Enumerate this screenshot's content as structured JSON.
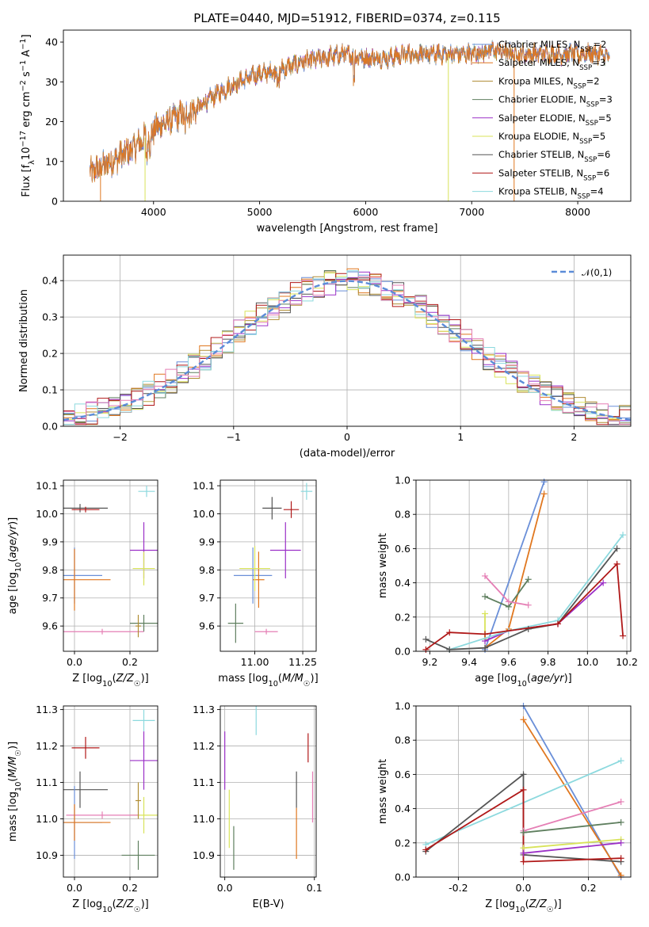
{
  "figure_title": "PLATE=0440, MJD=51912, FIBERID=0374, z=0.115",
  "colors": {
    "Chabrier MILES": "#6a8fd8",
    "Salpeter MILES": "#e0771f",
    "Kroupa MILES": "#b08d34",
    "Chabrier ELODIE": "#5f7f5f",
    "Salpeter ELODIE": "#9b30c7",
    "Kroupa ELODIE": "#d8e35a",
    "Chabrier STELIB": "#555555",
    "Salpeter STELIB": "#b01818",
    "Kroupa STELIB": "#8cd9de",
    "pink": "#e57fb5",
    "normal": "#5b8cd8"
  },
  "chart_data": [
    {
      "id": "spectrum",
      "type": "line",
      "title": "",
      "xlabel": "wavelength [Angstrom, rest frame]",
      "ylabel": "Flux [f_λ10^-17 erg cm^-2 s^-1 A^-1]",
      "xlim": [
        3150,
        8500
      ],
      "ylim": [
        0,
        43
      ],
      "xticks": [
        4000,
        5000,
        6000,
        7000,
        8000
      ],
      "yticks": [
        0,
        10,
        20,
        30,
        40
      ],
      "grid": false,
      "legend_position": "right",
      "x_range_data": [
        3400,
        8300
      ],
      "continuum_x": [
        3400,
        3600,
        3800,
        4000,
        4200,
        4400,
        4600,
        4800,
        5000,
        5200,
        5400,
        5600,
        5800,
        6000,
        6200,
        6400,
        6600,
        6800,
        7000,
        7200,
        7400,
        7600,
        7800,
        8000,
        8200,
        8300
      ],
      "continuum_y": [
        7,
        10,
        13,
        18,
        21,
        23,
        27,
        30,
        32,
        33,
        35,
        36,
        37,
        36,
        36,
        37,
        37,
        37,
        37,
        38,
        37,
        37,
        37,
        37,
        37,
        36
      ],
      "spikes": [
        {
          "x": 3500,
          "y": 0,
          "series": "Salpeter MILES"
        },
        {
          "x": 3920,
          "y": 0,
          "series": "Kroupa ELODIE"
        },
        {
          "x": 6780,
          "y": 0,
          "series": "Kroupa ELODIE"
        },
        {
          "x": 7400,
          "y": 0,
          "series": "Salpeter MILES"
        }
      ],
      "series": [
        {
          "name": "Chabrier MILES",
          "label_main": "Chabrier MILES, N",
          "label_sub": "SSP",
          "label_end": "=2"
        },
        {
          "name": "Salpeter MILES",
          "label_main": "Salpeter MILES, N",
          "label_sub": "SSP",
          "label_end": "=3"
        },
        {
          "name": "Kroupa MILES",
          "label_main": "Kroupa MILES, N",
          "label_sub": "SSP",
          "label_end": "=2"
        },
        {
          "name": "Chabrier ELODIE",
          "label_main": "Chabrier ELODIE, N",
          "label_sub": "SSP",
          "label_end": "=3"
        },
        {
          "name": "Salpeter ELODIE",
          "label_main": "Salpeter ELODIE, N",
          "label_sub": "SSP",
          "label_end": "=5"
        },
        {
          "name": "Kroupa ELODIE",
          "label_main": "Kroupa ELODIE, N",
          "label_sub": "SSP",
          "label_end": "=5"
        },
        {
          "name": "Chabrier STELIB",
          "label_main": "Chabrier STELIB, N",
          "label_sub": "SSP",
          "label_end": "=6"
        },
        {
          "name": "Salpeter STELIB",
          "label_main": "Salpeter STELIB, N",
          "label_sub": "SSP",
          "label_end": "=6"
        },
        {
          "name": "Kroupa STELIB",
          "label_main": "Kroupa STELIB, N",
          "label_sub": "SSP",
          "label_end": "=4"
        }
      ]
    },
    {
      "id": "residuals",
      "type": "line",
      "xlabel": "(data-model)/error",
      "ylabel": "Normed distribution",
      "xlim": [
        -2.5,
        2.5
      ],
      "ylim": [
        0,
        0.47
      ],
      "xticks": [
        -2,
        -1,
        0,
        1,
        2
      ],
      "yticks": [
        0.0,
        0.1,
        0.2,
        0.3,
        0.4
      ],
      "grid": true,
      "legend_position": "top-right",
      "legend_label": "𝒩(0,1)",
      "bins": 50,
      "hist_colors": [
        "#6a8fd8",
        "#e0771f",
        "#b08d34",
        "#5f7f5f",
        "#9b30c7",
        "#d8e35a",
        "#555555",
        "#b01818",
        "#8cd9de",
        "#e57fb5"
      ]
    },
    {
      "id": "age-vs-Z",
      "type": "scatter",
      "xlabel": "Z [log10(Z/Z☉)]",
      "ylabel": "age  [log10(age/yr)]",
      "xlim": [
        -0.04,
        0.3
      ],
      "ylim": [
        9.51,
        10.12
      ],
      "xticks": [
        0.0,
        0.2
      ],
      "yticks": [
        9.6,
        9.7,
        9.8,
        9.9,
        10.0,
        10.1
      ],
      "grid": true,
      "points": [
        {
          "x": 0.02,
          "y": 10.02,
          "xerr": 0.1,
          "yerr": 0.015,
          "series": "Chabrier STELIB"
        },
        {
          "x": 0.04,
          "y": 10.015,
          "xerr": 0.05,
          "yerr": 0.01,
          "series": "Salpeter STELIB"
        },
        {
          "x": 0.26,
          "y": 10.08,
          "xerr": 0.03,
          "yerr": 0.02,
          "series": "Kroupa STELIB"
        },
        {
          "x": 0.0,
          "y": 9.78,
          "xerr": 0.1,
          "yerr": 0.1,
          "series": "Chabrier MILES"
        },
        {
          "x": 0.0,
          "y": 9.765,
          "xerr": 0.13,
          "yerr": 0.11,
          "series": "Salpeter MILES"
        },
        {
          "x": 0.25,
          "y": 9.87,
          "xerr": 0.05,
          "yerr": 0.1,
          "series": "Salpeter ELODIE"
        },
        {
          "x": 0.25,
          "y": 9.805,
          "xerr": 0.04,
          "yerr": 0.06,
          "series": "Kroupa ELODIE"
        },
        {
          "x": 0.25,
          "y": 9.61,
          "xerr": 0.05,
          "yerr": 0.03,
          "series": "Chabrier ELODIE"
        },
        {
          "x": 0.1,
          "y": 9.58,
          "xerr": 0.15,
          "yerr": 0.01,
          "series": "pink"
        },
        {
          "x": 0.23,
          "y": 9.6,
          "xerr": 0.01,
          "yerr": 0.04,
          "series": "Kroupa MILES"
        }
      ]
    },
    {
      "id": "age-vs-mass",
      "type": "scatter",
      "xlabel": "mass [log10(M/M☉)]",
      "ylabel": "",
      "xlim": [
        10.82,
        11.32
      ],
      "ylim": [
        9.51,
        10.12
      ],
      "xticks": [
        11.0,
        11.25
      ],
      "yticks": [
        9.6,
        9.7,
        9.8,
        9.9,
        10.0,
        10.1
      ],
      "grid": true,
      "points": [
        {
          "x": 11.09,
          "y": 10.02,
          "xerr": 0.05,
          "yerr": 0.04,
          "series": "Chabrier STELIB"
        },
        {
          "x": 11.19,
          "y": 10.015,
          "xerr": 0.04,
          "yerr": 0.03,
          "series": "Salpeter STELIB"
        },
        {
          "x": 11.27,
          "y": 10.08,
          "xerr": 0.03,
          "yerr": 0.03,
          "series": "Kroupa STELIB"
        },
        {
          "x": 10.99,
          "y": 9.78,
          "xerr": 0.1,
          "yerr": 0.1,
          "series": "Chabrier MILES"
        },
        {
          "x": 11.02,
          "y": 9.765,
          "xerr": 0.03,
          "yerr": 0.1,
          "series": "Salpeter MILES"
        },
        {
          "x": 11.16,
          "y": 9.87,
          "xerr": 0.08,
          "yerr": 0.1,
          "series": "Salpeter ELODIE"
        },
        {
          "x": 11.0,
          "y": 9.805,
          "xerr": 0.08,
          "yerr": 0.08,
          "series": "Kroupa ELODIE"
        },
        {
          "x": 10.9,
          "y": 9.61,
          "xerr": 0.04,
          "yerr": 0.07,
          "series": "Chabrier ELODIE"
        },
        {
          "x": 11.06,
          "y": 9.58,
          "xerr": 0.06,
          "yerr": 0.01,
          "series": "pink"
        }
      ]
    },
    {
      "id": "weight-vs-age",
      "type": "line",
      "xlabel": "age  [log10(age/yr)]",
      "ylabel": "mass weight",
      "xlim": [
        9.13,
        10.22
      ],
      "ylim": [
        0.0,
        1.0
      ],
      "xticks": [
        9.2,
        9.4,
        9.6,
        9.8,
        10.0,
        10.2
      ],
      "yticks": [
        0.0,
        0.2,
        0.4,
        0.6,
        0.8,
        1.0
      ],
      "grid": true,
      "series": [
        {
          "name": "Chabrier MILES",
          "x": [
            9.48,
            9.78
          ],
          "y": [
            0.01,
            0.99
          ]
        },
        {
          "name": "Salpeter MILES",
          "x": [
            9.48,
            9.6,
            9.78
          ],
          "y": [
            0.02,
            0.13,
            0.92
          ]
        },
        {
          "name": "Chabrier ELODIE",
          "x": [
            9.48,
            9.6,
            9.7
          ],
          "y": [
            0.32,
            0.26,
            0.42
          ]
        },
        {
          "name": "pink",
          "x": [
            9.48,
            9.6,
            9.7
          ],
          "y": [
            0.44,
            0.29,
            0.27
          ]
        },
        {
          "name": "Kroupa ELODIE",
          "x": [
            9.48,
            9.48
          ],
          "y": [
            0.22,
            0.07
          ]
        },
        {
          "name": "Salpeter ELODIE",
          "x": [
            9.48,
            9.6,
            9.85,
            10.08
          ],
          "y": [
            0.06,
            0.12,
            0.16,
            0.4
          ]
        },
        {
          "name": "Kroupa STELIB",
          "x": [
            9.3,
            9.6,
            9.85,
            10.18
          ],
          "y": [
            0.01,
            0.12,
            0.18,
            0.68
          ]
        },
        {
          "name": "Chabrier STELIB",
          "x": [
            9.18,
            9.3,
            9.48,
            9.7,
            9.85,
            10.15
          ],
          "y": [
            0.07,
            0.01,
            0.02,
            0.13,
            0.16,
            0.6
          ]
        },
        {
          "name": "Salpeter STELIB",
          "x": [
            9.18,
            9.3,
            9.48,
            9.85,
            10.15,
            10.18
          ],
          "y": [
            0.01,
            0.11,
            0.1,
            0.16,
            0.51,
            0.09
          ]
        }
      ]
    },
    {
      "id": "mass-vs-Z",
      "type": "scatter",
      "xlabel": "Z [log10(Z/Z☉)]",
      "ylabel": "mass [log10(M/M☉)]",
      "xlim": [
        -0.04,
        0.3
      ],
      "ylim": [
        10.84,
        11.31
      ],
      "xticks": [
        0.0,
        0.2
      ],
      "yticks": [
        10.9,
        11.0,
        11.1,
        11.2,
        11.3
      ],
      "grid": true,
      "points": [
        {
          "x": 0.04,
          "y": 11.195,
          "xerr": 0.05,
          "yerr": 0.03,
          "series": "Salpeter STELIB"
        },
        {
          "x": 0.25,
          "y": 11.27,
          "xerr": 0.04,
          "yerr": 0.03,
          "series": "Kroupa STELIB"
        },
        {
          "x": 0.02,
          "y": 11.08,
          "xerr": 0.1,
          "yerr": 0.05,
          "series": "Chabrier STELIB"
        },
        {
          "x": 0.25,
          "y": 11.16,
          "xerr": 0.05,
          "yerr": 0.08,
          "series": "Salpeter ELODIE"
        },
        {
          "x": 0.25,
          "y": 11.01,
          "xerr": 0.05,
          "yerr": 0.05,
          "series": "Kroupa ELODIE"
        },
        {
          "x": 0.1,
          "y": 11.01,
          "xerr": 0.13,
          "yerr": 0.01,
          "series": "pink"
        },
        {
          "x": 0.0,
          "y": 10.99,
          "xerr": 0.1,
          "yerr": 0.1,
          "series": "Chabrier MILES"
        },
        {
          "x": 0.0,
          "y": 10.99,
          "xerr": 0.13,
          "yerr": 0.05,
          "series": "Salpeter MILES"
        },
        {
          "x": 0.23,
          "y": 10.9,
          "xerr": 0.06,
          "yerr": 0.04,
          "series": "Chabrier ELODIE"
        },
        {
          "x": 0.23,
          "y": 11.05,
          "xerr": 0.01,
          "yerr": 0.05,
          "series": "Kroupa MILES"
        }
      ]
    },
    {
      "id": "mass-vs-EBV",
      "type": "scatter",
      "xlabel": "E(B-V)",
      "ylabel": "",
      "xlim": [
        -0.005,
        0.102
      ],
      "ylim": [
        10.84,
        11.31
      ],
      "xticks": [
        0.0,
        0.1
      ],
      "yticks": [
        10.9,
        11.0,
        11.1,
        11.2,
        11.3
      ],
      "grid": true,
      "points": [
        {
          "x": 0.0,
          "y": 11.16,
          "xerr": 0.0,
          "yerr": 0.08,
          "series": "Salpeter ELODIE"
        },
        {
          "x": 0.005,
          "y": 11.0,
          "xerr": 0.0,
          "yerr": 0.08,
          "series": "Kroupa ELODIE"
        },
        {
          "x": 0.01,
          "y": 10.92,
          "xerr": 0.0,
          "yerr": 0.06,
          "series": "Chabrier ELODIE"
        },
        {
          "x": 0.035,
          "y": 11.27,
          "xerr": 0.0,
          "yerr": 0.04,
          "series": "Kroupa STELIB"
        },
        {
          "x": 0.08,
          "y": 11.08,
          "xerr": 0.0,
          "yerr": 0.05,
          "series": "Chabrier STELIB"
        },
        {
          "x": 0.08,
          "y": 10.96,
          "xerr": 0.0,
          "yerr": 0.07,
          "series": "Salpeter MILES"
        },
        {
          "x": 0.093,
          "y": 11.195,
          "xerr": 0.0,
          "yerr": 0.04,
          "series": "Salpeter STELIB"
        },
        {
          "x": 0.098,
          "y": 11.06,
          "xerr": 0.0,
          "yerr": 0.07,
          "series": "pink"
        }
      ]
    },
    {
      "id": "weight-vs-Z",
      "type": "line",
      "xlabel": "Z [log10(Z/Z☉)]",
      "ylabel": "mass weight",
      "xlim": [
        -0.33,
        0.33
      ],
      "ylim": [
        0.0,
        1.0
      ],
      "xticks": [
        -0.2,
        0.0,
        0.2
      ],
      "yticks": [
        0.0,
        0.2,
        0.4,
        0.6,
        0.8,
        1.0
      ],
      "grid": true,
      "series": [
        {
          "name": "Chabrier MILES",
          "x": [
            0.0,
            0.3
          ],
          "y": [
            1.0,
            0.0
          ]
        },
        {
          "name": "Salpeter MILES",
          "x": [
            0.0,
            0.3
          ],
          "y": [
            0.92,
            0.01
          ]
        },
        {
          "name": "Kroupa STELIB",
          "x": [
            -0.3,
            0.3
          ],
          "y": [
            0.19,
            0.68
          ]
        },
        {
          "name": "Chabrier STELIB",
          "x": [
            -0.3,
            0.0,
            0.0,
            0.3
          ],
          "y": [
            0.15,
            0.6,
            0.13,
            0.09
          ]
        },
        {
          "name": "Salpeter STELIB",
          "x": [
            -0.3,
            0.0,
            0.0,
            0.3
          ],
          "y": [
            0.16,
            0.51,
            0.09,
            0.11
          ]
        },
        {
          "name": "pink",
          "x": [
            0.0,
            0.3
          ],
          "y": [
            0.27,
            0.44
          ]
        },
        {
          "name": "Chabrier ELODIE",
          "x": [
            0.0,
            0.3
          ],
          "y": [
            0.26,
            0.32
          ]
        },
        {
          "name": "Kroupa ELODIE",
          "x": [
            0.0,
            0.3
          ],
          "y": [
            0.17,
            0.22
          ]
        },
        {
          "name": "Salpeter ELODIE",
          "x": [
            0.0,
            0.3
          ],
          "y": [
            0.14,
            0.2
          ]
        }
      ]
    }
  ]
}
